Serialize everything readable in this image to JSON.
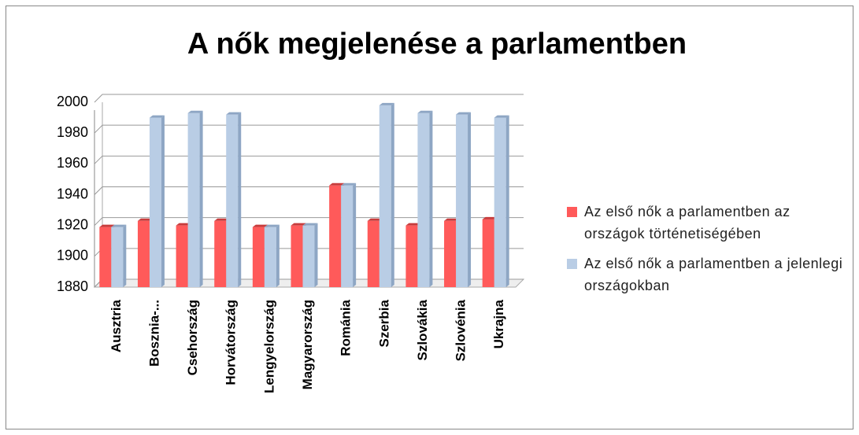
{
  "chart_data": {
    "type": "bar",
    "title": "A nők megjelenése a parlamentben",
    "categories": [
      "Ausztria",
      "Bosznia-...",
      "Csehország",
      "Horvátország",
      "Lengyelország",
      "Magyarország",
      "Románia",
      "Szerbia",
      "Szlovákia",
      "Szlovénia",
      "Ukrajna"
    ],
    "series": [
      {
        "name": "Az első nők a parlamentben az országok történetiségében",
        "color": "#ff5a5a",
        "values": [
          1919,
          1923,
          1920,
          1923,
          1919,
          1920,
          1946,
          1923,
          1920,
          1923,
          1924
        ]
      },
      {
        "name": "Az első nők a parlamentben a jelenlegi országokban",
        "color": "#b9cde5",
        "values": [
          1919,
          1990,
          1993,
          1992,
          1919,
          1920,
          1946,
          1998,
          1993,
          1992,
          1990
        ]
      }
    ],
    "ylim": [
      1880,
      2000
    ],
    "yticks": [
      1880,
      1900,
      1920,
      1940,
      1960,
      1980,
      2000
    ],
    "grid": true,
    "legend": "right"
  }
}
